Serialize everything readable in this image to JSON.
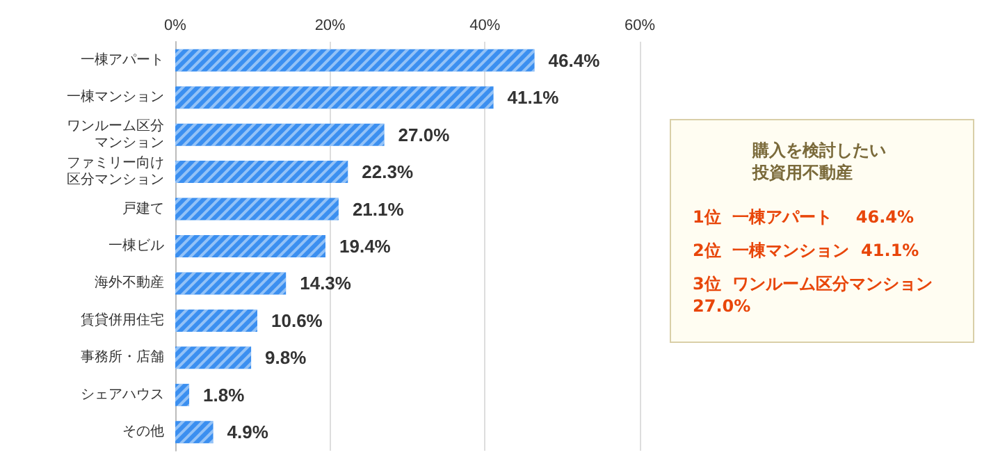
{
  "chart_data": {
    "type": "bar",
    "orientation": "horizontal",
    "categories": [
      "一棟アパート",
      "一棟マンション",
      "ワンルーム区分マンション",
      "ファミリー向け区分マンション",
      "戸建て",
      "一棟ビル",
      "海外不動産",
      "賃貸併用住宅",
      "事務所・店舗",
      "シェアハウス",
      "その他"
    ],
    "values": [
      46.4,
      41.1,
      27.0,
      22.3,
      21.1,
      19.4,
      14.3,
      10.6,
      9.8,
      1.8,
      4.9
    ],
    "value_labels": [
      "46.4%",
      "41.1%",
      "27.0%",
      "22.3%",
      "21.1%",
      "19.4%",
      "14.3%",
      "10.6%",
      "9.8%",
      "1.8%",
      "4.9%"
    ],
    "color": "#3b8ff0",
    "xlim": [
      0,
      60
    ],
    "xticks": [
      {
        "value": 0,
        "label": "0%"
      },
      {
        "value": 20,
        "label": "20%"
      },
      {
        "value": 40,
        "label": "40%"
      },
      {
        "value": 60,
        "label": "60%"
      }
    ],
    "grid": "x",
    "annotations": [
      "購入を検討したい投資用不動産",
      "1位  一棟アパート    46.4%",
      "2位  一棟マンション  41.1%",
      "3位  ワンルーム区分マンション\n27.0%"
    ]
  }
}
